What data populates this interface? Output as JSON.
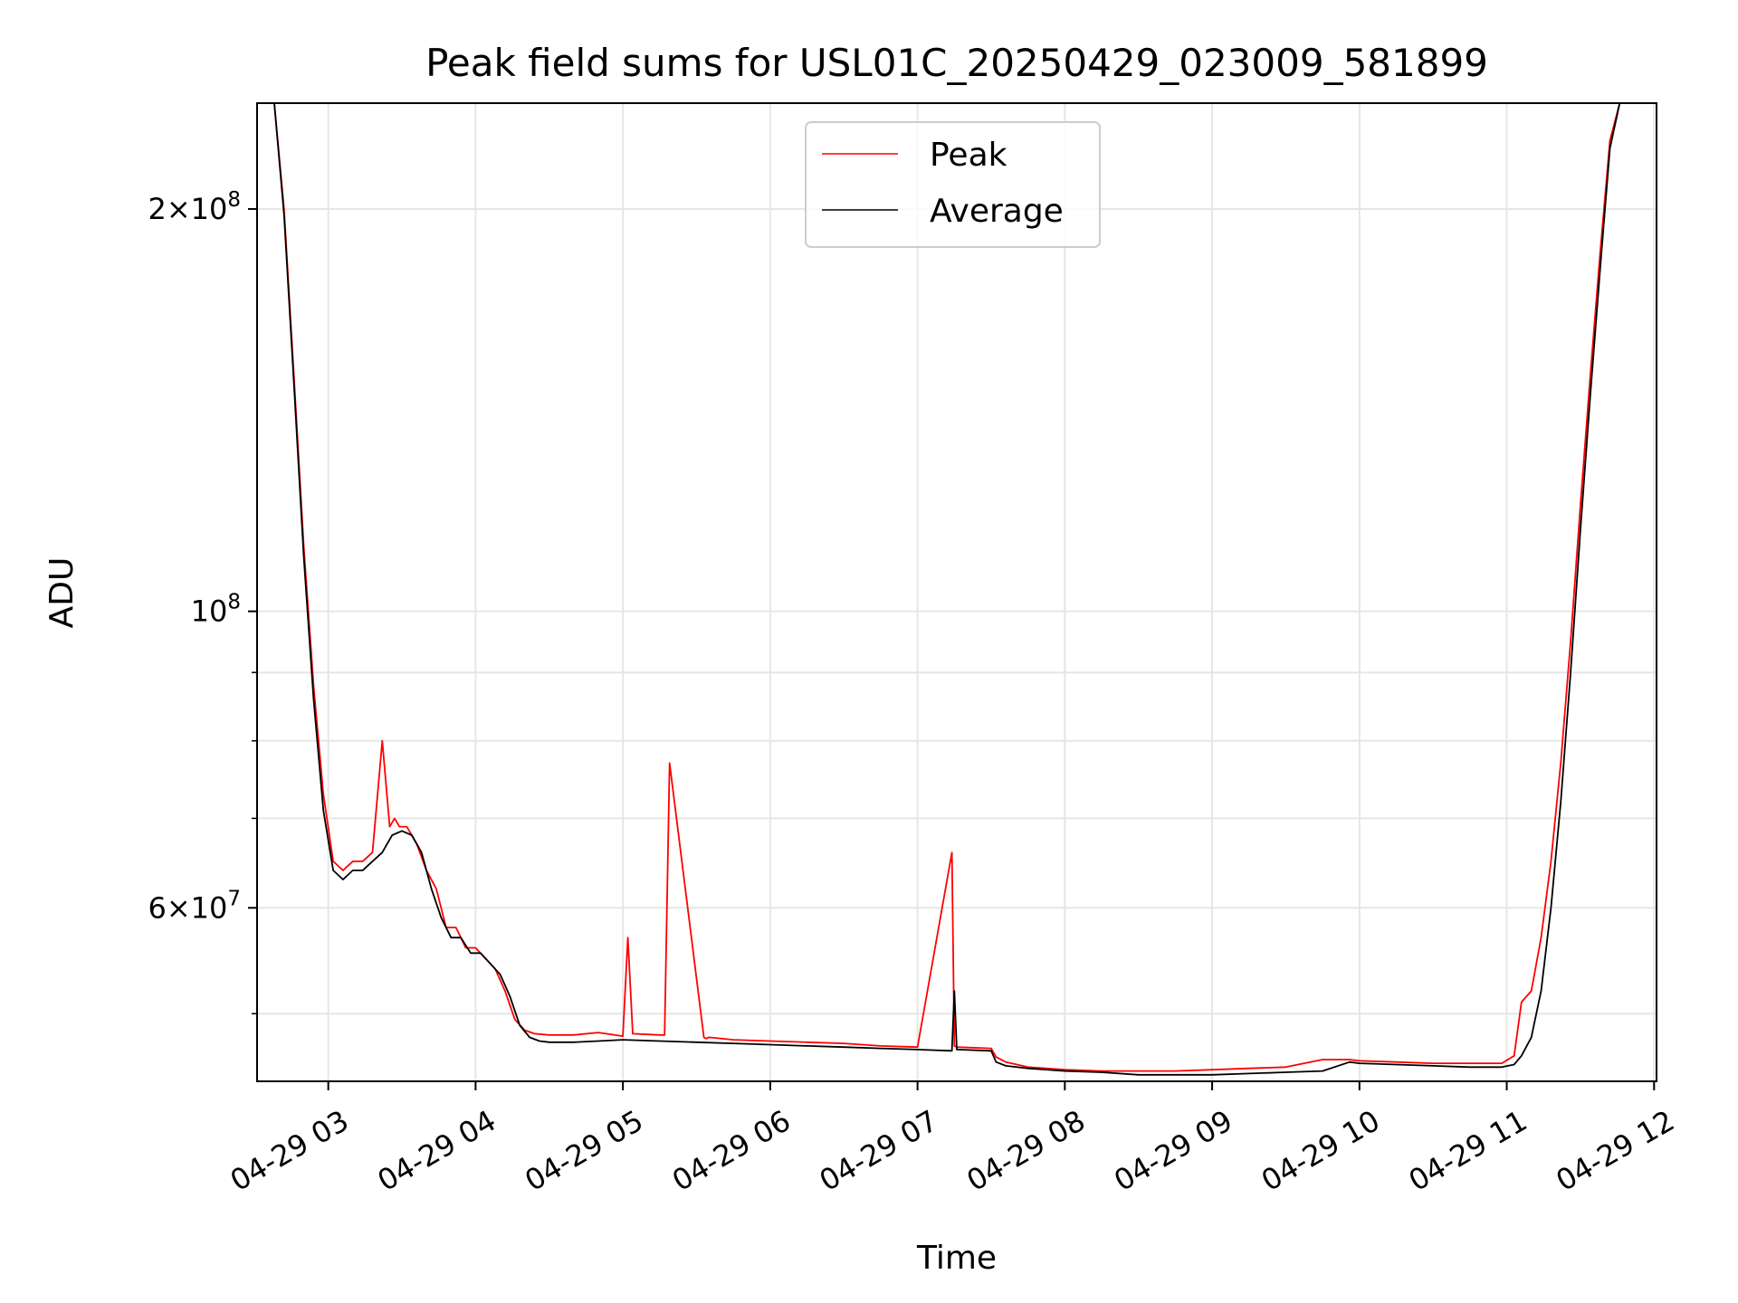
{
  "chart_data": {
    "type": "line",
    "title": "Peak field sums for USL01C_20250429_023009_581899",
    "xlabel": "Time",
    "ylabel": "ADU",
    "y_scale": "log",
    "ylim": [
      44500000,
      240000000
    ],
    "xlim": [
      "2025-04-29 02:31",
      "2025-04-29 12:01"
    ],
    "grid": true,
    "legend_position": "top-center",
    "x_ticks": [
      "2025-04-29 03:00",
      "2025-04-29 04:00",
      "2025-04-29 05:00",
      "2025-04-29 06:00",
      "2025-04-29 07:00",
      "2025-04-29 08:00",
      "2025-04-29 09:00",
      "2025-04-29 10:00",
      "2025-04-29 11:00",
      "2025-04-29 12:00"
    ],
    "x_tick_labels": [
      "04-29 03",
      "04-29 04",
      "04-29 05",
      "04-29 06",
      "04-29 07",
      "04-29 08",
      "04-29 09",
      "04-29 10",
      "04-29 11",
      "04-29 12"
    ],
    "y_ticks": [
      {
        "value": 200000000,
        "mantissa": "2",
        "exp": "8"
      },
      {
        "value": 100000000,
        "mantissa": "",
        "exp": "8"
      },
      {
        "value": 60000000,
        "mantissa": "6",
        "exp": "7"
      }
    ],
    "y_minor_ticks": [
      50000000,
      70000000,
      80000000,
      90000000
    ],
    "colors": {
      "peak": "#ff0000",
      "average": "#000000",
      "grid": "#e6e6e6"
    },
    "series": [
      {
        "name": "Peak",
        "color": "#ff0000",
        "x": [
          "2025-04-29 02:38",
          "2025-04-29 02:42",
          "2025-04-29 02:46",
          "2025-04-29 02:50",
          "2025-04-29 02:54",
          "2025-04-29 02:58",
          "2025-04-29 03:02",
          "2025-04-29 03:06",
          "2025-04-29 03:10",
          "2025-04-29 03:14",
          "2025-04-29 03:18",
          "2025-04-29 03:22",
          "2025-04-29 03:25",
          "2025-04-29 03:27",
          "2025-04-29 03:29",
          "2025-04-29 03:32",
          "2025-04-29 03:36",
          "2025-04-29 03:40",
          "2025-04-29 03:44",
          "2025-04-29 03:48",
          "2025-04-29 03:52",
          "2025-04-29 03:56",
          "2025-04-29 04:00",
          "2025-04-29 04:04",
          "2025-04-29 04:08",
          "2025-04-29 04:12",
          "2025-04-29 04:16",
          "2025-04-29 04:20",
          "2025-04-29 04:24",
          "2025-04-29 04:30",
          "2025-04-29 04:40",
          "2025-04-29 04:50",
          "2025-04-29 05:00",
          "2025-04-29 05:02",
          "2025-04-29 05:04",
          "2025-04-29 05:15",
          "2025-04-29 05:17",
          "2025-04-29 05:19",
          "2025-04-29 05:33",
          "2025-04-29 05:34",
          "2025-04-29 05:35",
          "2025-04-29 05:45",
          "2025-04-29 06:00",
          "2025-04-29 06:15",
          "2025-04-29 06:30",
          "2025-04-29 06:45",
          "2025-04-29 07:00",
          "2025-04-29 07:14",
          "2025-04-29 07:15",
          "2025-04-29 07:16",
          "2025-04-29 07:30",
          "2025-04-29 07:32",
          "2025-04-29 07:36",
          "2025-04-29 07:45",
          "2025-04-29 08:00",
          "2025-04-29 08:15",
          "2025-04-29 08:30",
          "2025-04-29 08:45",
          "2025-04-29 09:00",
          "2025-04-29 09:15",
          "2025-04-29 09:30",
          "2025-04-29 09:45",
          "2025-04-29 09:56",
          "2025-04-29 10:00",
          "2025-04-29 10:15",
          "2025-04-29 10:30",
          "2025-04-29 10:45",
          "2025-04-29 10:58",
          "2025-04-29 11:03",
          "2025-04-29 11:06",
          "2025-04-29 11:10",
          "2025-04-29 11:14",
          "2025-04-29 11:18",
          "2025-04-29 11:22",
          "2025-04-29 11:26",
          "2025-04-29 11:30",
          "2025-04-29 11:34",
          "2025-04-29 11:38",
          "2025-04-29 11:42",
          "2025-04-29 11:46",
          "2025-04-29 11:50",
          "2025-04-29 11:54"
        ],
        "values": [
          240000000,
          200000000,
          150000000,
          112000000,
          88000000,
          73000000,
          65000000,
          64000000,
          65000000,
          65000000,
          66000000,
          80000000,
          69000000,
          70000000,
          69000000,
          69000000,
          67000000,
          64000000,
          62000000,
          58000000,
          58000000,
          56000000,
          56000000,
          55000000,
          54000000,
          52000000,
          49500000,
          48600000,
          48300000,
          48200000,
          48200000,
          48400000,
          48100000,
          57000000,
          48300000,
          48200000,
          48200000,
          77000000,
          48000000,
          47900000,
          48000000,
          47800000,
          47700000,
          47600000,
          47500000,
          47300000,
          47200000,
          66000000,
          47300000,
          47200000,
          47100000,
          46400000,
          46000000,
          45600000,
          45400000,
          45300000,
          45300000,
          45300000,
          45400000,
          45500000,
          45600000,
          46200000,
          46200000,
          46100000,
          46000000,
          45900000,
          45900000,
          45900000,
          46500000,
          51000000,
          52000000,
          57000000,
          65000000,
          77000000,
          95000000,
          120000000,
          150000000,
          185000000,
          225000000,
          240000000,
          240000000,
          240000000
        ]
      },
      {
        "name": "Average",
        "color": "#000000",
        "x": [
          "2025-04-29 02:38",
          "2025-04-29 02:42",
          "2025-04-29 02:46",
          "2025-04-29 02:50",
          "2025-04-29 02:54",
          "2025-04-29 02:58",
          "2025-04-29 03:02",
          "2025-04-29 03:06",
          "2025-04-29 03:10",
          "2025-04-29 03:14",
          "2025-04-29 03:18",
          "2025-04-29 03:22",
          "2025-04-29 03:26",
          "2025-04-29 03:30",
          "2025-04-29 03:34",
          "2025-04-29 03:38",
          "2025-04-29 03:42",
          "2025-04-29 03:46",
          "2025-04-29 03:50",
          "2025-04-29 03:54",
          "2025-04-29 03:58",
          "2025-04-29 04:02",
          "2025-04-29 04:06",
          "2025-04-29 04:10",
          "2025-04-29 04:14",
          "2025-04-29 04:18",
          "2025-04-29 04:22",
          "2025-04-29 04:26",
          "2025-04-29 04:30",
          "2025-04-29 04:40",
          "2025-04-29 04:50",
          "2025-04-29 05:00",
          "2025-04-29 05:15",
          "2025-04-29 05:30",
          "2025-04-29 05:45",
          "2025-04-29 06:00",
          "2025-04-29 06:15",
          "2025-04-29 06:30",
          "2025-04-29 06:45",
          "2025-04-29 07:00",
          "2025-04-29 07:14",
          "2025-04-29 07:15",
          "2025-04-29 07:16",
          "2025-04-29 07:30",
          "2025-04-29 07:32",
          "2025-04-29 07:36",
          "2025-04-29 07:45",
          "2025-04-29 08:00",
          "2025-04-29 08:15",
          "2025-04-29 08:30",
          "2025-04-29 08:45",
          "2025-04-29 09:00",
          "2025-04-29 09:15",
          "2025-04-29 09:30",
          "2025-04-29 09:45",
          "2025-04-29 09:56",
          "2025-04-29 10:00",
          "2025-04-29 10:15",
          "2025-04-29 10:30",
          "2025-04-29 10:45",
          "2025-04-29 10:58",
          "2025-04-29 11:03",
          "2025-04-29 11:06",
          "2025-04-29 11:10",
          "2025-04-29 11:14",
          "2025-04-29 11:18",
          "2025-04-29 11:22",
          "2025-04-29 11:26",
          "2025-04-29 11:30",
          "2025-04-29 11:34",
          "2025-04-29 11:38",
          "2025-04-29 11:42",
          "2025-04-29 11:46",
          "2025-04-29 11:50",
          "2025-04-29 11:54"
        ],
        "values": [
          240000000,
          198000000,
          148000000,
          110000000,
          86000000,
          71000000,
          64000000,
          63000000,
          64000000,
          64000000,
          65000000,
          66000000,
          68000000,
          68500000,
          68000000,
          66000000,
          62000000,
          59000000,
          57000000,
          57000000,
          55500000,
          55500000,
          54500000,
          53500000,
          51500000,
          49000000,
          48000000,
          47700000,
          47600000,
          47600000,
          47700000,
          47800000,
          47700000,
          47600000,
          47500000,
          47400000,
          47300000,
          47200000,
          47100000,
          47000000,
          46900000,
          52000000,
          47000000,
          46900000,
          46000000,
          45700000,
          45500000,
          45300000,
          45200000,
          45000000,
          45000000,
          45000000,
          45100000,
          45200000,
          45300000,
          46000000,
          45900000,
          45800000,
          45700000,
          45600000,
          45600000,
          45800000,
          46500000,
          48000000,
          52000000,
          60000000,
          72000000,
          90000000,
          115000000,
          145000000,
          180000000,
          222000000,
          240000000,
          240000000,
          240000000
        ]
      }
    ]
  }
}
